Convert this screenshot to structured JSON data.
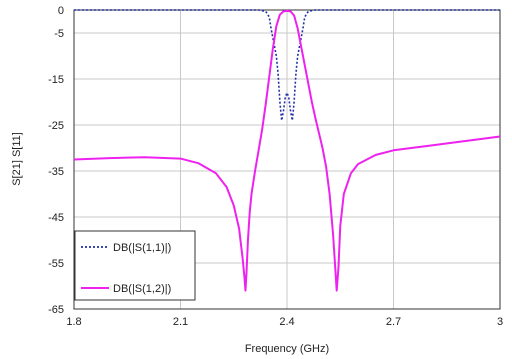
{
  "chart_data": {
    "type": "line",
    "title": "",
    "xlabel": "Frequency (GHz)",
    "ylabel": "S[21] S[11]",
    "xlim": [
      1.8,
      3.0
    ],
    "ylim": [
      -65,
      0
    ],
    "x_ticks": [
      "1.8",
      "2.1",
      "2.4",
      "2.7",
      "3"
    ],
    "y_ticks": [
      "0",
      "-5",
      "-15",
      "-25",
      "-35",
      "-45",
      "-55",
      "-65"
    ],
    "grid": true,
    "legend_position": "bottom-left",
    "series": [
      {
        "name": "DB(|S(1,1)|)",
        "color": "#1f2fa8",
        "style": "dotted",
        "points": [
          [
            1.8,
            0
          ],
          [
            2.2,
            0
          ],
          [
            2.32,
            0
          ],
          [
            2.34,
            -0.3
          ],
          [
            2.35,
            -1.5
          ],
          [
            2.355,
            -4
          ],
          [
            2.36,
            -6
          ],
          [
            2.365,
            -8
          ],
          [
            2.37,
            -10
          ],
          [
            2.375,
            -14
          ],
          [
            2.38,
            -20
          ],
          [
            2.385,
            -24
          ],
          [
            2.39,
            -22
          ],
          [
            2.395,
            -19
          ],
          [
            2.4,
            -18
          ],
          [
            2.405,
            -19
          ],
          [
            2.41,
            -22
          ],
          [
            2.415,
            -24
          ],
          [
            2.42,
            -20
          ],
          [
            2.425,
            -14
          ],
          [
            2.43,
            -10
          ],
          [
            2.435,
            -8
          ],
          [
            2.44,
            -6
          ],
          [
            2.445,
            -4
          ],
          [
            2.45,
            -1.5
          ],
          [
            2.46,
            -0.3
          ],
          [
            2.48,
            0
          ],
          [
            2.6,
            0
          ],
          [
            3.0,
            0
          ]
        ]
      },
      {
        "name": "DB(|S(1,2)|)",
        "color": "#ee22ee",
        "style": "solid",
        "points": [
          [
            1.8,
            -32.5
          ],
          [
            1.9,
            -32.2
          ],
          [
            2.0,
            -32.0
          ],
          [
            2.1,
            -32.3
          ],
          [
            2.15,
            -33.3
          ],
          [
            2.2,
            -35.5
          ],
          [
            2.23,
            -38.5
          ],
          [
            2.25,
            -42.5
          ],
          [
            2.265,
            -47.5
          ],
          [
            2.275,
            -54
          ],
          [
            2.28,
            -58
          ],
          [
            2.283,
            -61
          ],
          [
            2.286,
            -57
          ],
          [
            2.29,
            -50
          ],
          [
            2.295,
            -44
          ],
          [
            2.3,
            -40
          ],
          [
            2.31,
            -35
          ],
          [
            2.32,
            -30.5
          ],
          [
            2.33,
            -26
          ],
          [
            2.34,
            -20.5
          ],
          [
            2.35,
            -14.5
          ],
          [
            2.36,
            -8.5
          ],
          [
            2.37,
            -3.5
          ],
          [
            2.38,
            -1.0
          ],
          [
            2.39,
            -0.3
          ],
          [
            2.4,
            -0.2
          ],
          [
            2.41,
            -0.3
          ],
          [
            2.42,
            -1.2
          ],
          [
            2.43,
            -4
          ],
          [
            2.44,
            -8
          ],
          [
            2.45,
            -12
          ],
          [
            2.46,
            -16
          ],
          [
            2.47,
            -20
          ],
          [
            2.48,
            -23.5
          ],
          [
            2.5,
            -30
          ],
          [
            2.51,
            -34
          ],
          [
            2.52,
            -40
          ],
          [
            2.53,
            -49
          ],
          [
            2.535,
            -55
          ],
          [
            2.54,
            -61
          ],
          [
            2.545,
            -56
          ],
          [
            2.55,
            -47
          ],
          [
            2.56,
            -40
          ],
          [
            2.58,
            -35.5
          ],
          [
            2.6,
            -33.5
          ],
          [
            2.65,
            -31.5
          ],
          [
            2.7,
            -30.5
          ],
          [
            2.8,
            -29.5
          ],
          [
            2.9,
            -28.5
          ],
          [
            3.0,
            -27.5
          ]
        ]
      }
    ]
  }
}
